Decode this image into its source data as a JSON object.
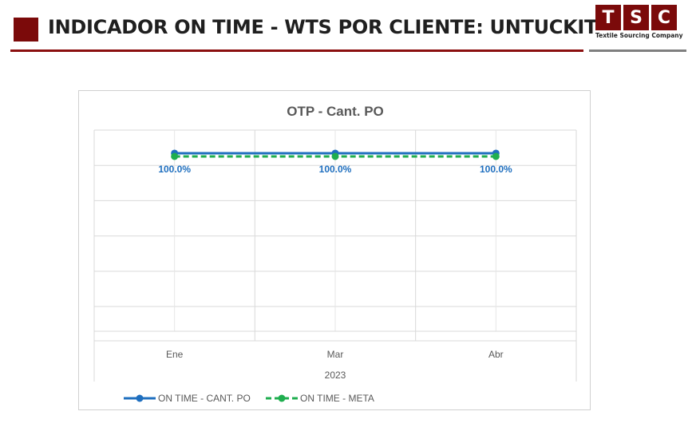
{
  "header": {
    "title": "INDICADOR ON TIME - WTS POR CLIENTE: UNTUCKIT",
    "logo_letters": [
      "T",
      "S",
      "C"
    ],
    "logo_subtitle": "Textile Sourcing Company",
    "brand_color": "#7b0a0a"
  },
  "chart_data": {
    "type": "line",
    "title": "OTP - Cant. PO",
    "categories": [
      "Ene",
      "Mar",
      "Abr"
    ],
    "group_label": "2023",
    "series": [
      {
        "name": "ON TIME - CANT. PO",
        "values": [
          1.0,
          1.0,
          1.0
        ],
        "data_labels": [
          "100.0%",
          "100.0%",
          "100.0%"
        ],
        "color": "#1f6fbf",
        "dashed": false
      },
      {
        "name": "ON TIME - META",
        "values": [
          1.0,
          1.0,
          1.0
        ],
        "color": "#1fae4f",
        "dashed": true
      }
    ],
    "grid": true,
    "legend_position": "bottom"
  }
}
